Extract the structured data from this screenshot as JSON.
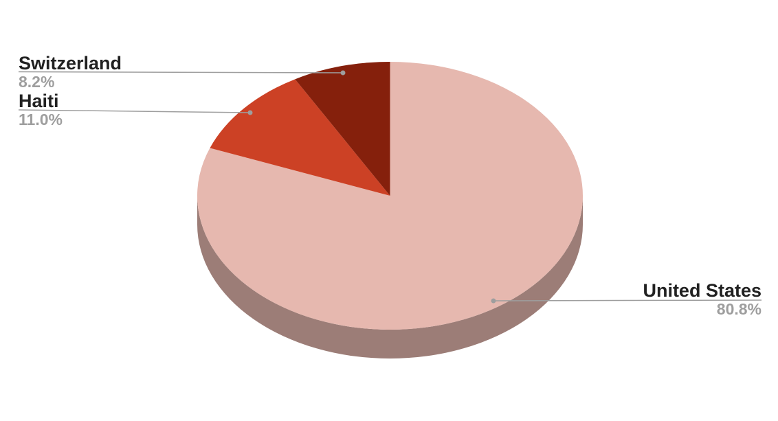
{
  "chart_data": {
    "type": "pie",
    "style": "3d",
    "title": "",
    "legend_position": "outside-callouts",
    "start_angle_deg_clockwise_from_top": 0,
    "background_color": "#ffffff",
    "slices": [
      {
        "label": "United States",
        "value": 80.8,
        "percent_label": "80.8%",
        "color": "#e6b8af"
      },
      {
        "label": "Haiti",
        "value": 11.0,
        "percent_label": "11.0%",
        "color": "#cc4125"
      },
      {
        "label": "Switzerland",
        "value": 8.2,
        "percent_label": "8.2%",
        "color": "#85200c"
      }
    ],
    "colors": {
      "depth_side": "#9c7d77",
      "leader_line": "#9e9e9e",
      "leader_dot": "#9e9e9e",
      "label_name": "#212121",
      "label_percent": "#9e9e9e"
    }
  }
}
